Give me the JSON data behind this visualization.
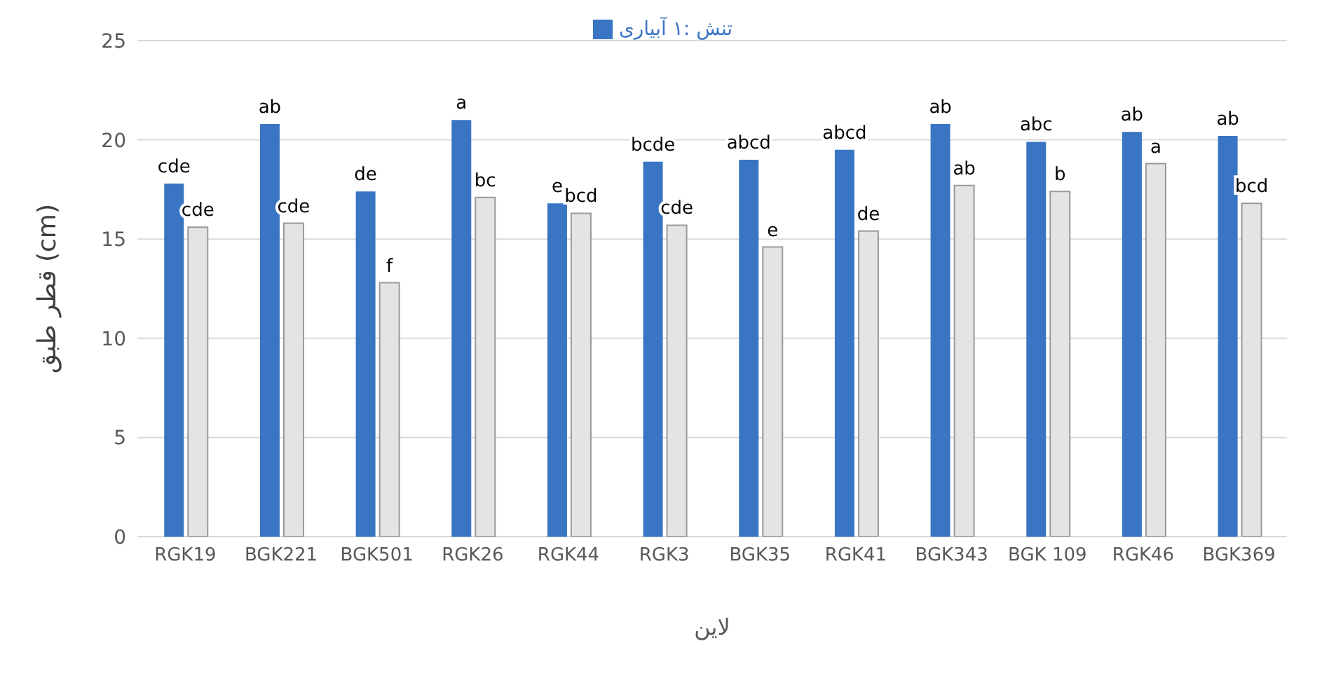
{
  "chart_data": {
    "type": "bar",
    "xlabel": "لاین",
    "ylabel": "قطر طبق (cm)",
    "categories": [
      "RGK19",
      "BGK221",
      "BGK501",
      "RGK26",
      "RGK44",
      "RGK3",
      "BGK35",
      "RGK41",
      "BGK343",
      "BGK 109",
      "RGK46",
      "BGK369"
    ],
    "series": [
      {
        "name": "تنش :۱ آبیاری",
        "color": "#3a75c4",
        "values": [
          17.8,
          20.8,
          17.4,
          21.0,
          16.8,
          18.9,
          19.0,
          19.5,
          20.8,
          19.9,
          20.4,
          20.2
        ],
        "value_labels": [
          "cde",
          "ab",
          "de",
          "a",
          "e",
          "bcde",
          "abcd",
          "abcd",
          "ab",
          "abc",
          "ab",
          "ab"
        ]
      },
      {
        "color": "#e4e4e4",
        "values": [
          15.6,
          15.8,
          12.8,
          17.1,
          16.3,
          15.7,
          14.6,
          15.4,
          17.7,
          17.4,
          18.8,
          16.8
        ],
        "value_labels": [
          "cde",
          "cde",
          "f",
          "bc",
          "bcd",
          "cde",
          "e",
          "de",
          "ab",
          "b",
          "a",
          "bcd"
        ]
      }
    ],
    "ylim": [
      0,
      25
    ],
    "yticks": [
      0,
      5,
      10,
      15,
      20,
      25
    ],
    "grid": "y",
    "legend": "top"
  }
}
